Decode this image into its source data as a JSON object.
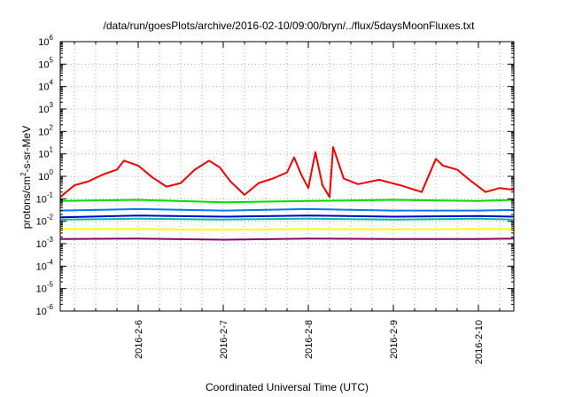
{
  "chart_data": {
    "type": "line",
    "title": "/data/run/goesPlots/archive/2016-02-10/09:00/bryn/../flux/5daysMoonFluxes.txt",
    "xlabel": "Coordinated Universal Time (UTC)",
    "ylabel": "protons/cm²-s-sr-MeV",
    "yscale": "log",
    "ylim": [
      1e-06,
      1000000.0
    ],
    "xlim": [
      "2016-02-05T02:00",
      "2016-02-10T10:00"
    ],
    "grid": true,
    "x_ticks": [
      "2016-2-6",
      "2016-2-7",
      "2016-2-8",
      "2016-2-9",
      "2016-2-10"
    ],
    "y_ticks": [
      {
        "base": "10",
        "exp": "-6"
      },
      {
        "base": "10",
        "exp": "-5"
      },
      {
        "base": "10",
        "exp": "-4"
      },
      {
        "base": "10",
        "exp": "-3"
      },
      {
        "base": "10",
        "exp": "-2"
      },
      {
        "base": "10",
        "exp": "-1"
      },
      {
        "base": "10",
        "exp": "0"
      },
      {
        "base": "10",
        "exp": "1"
      },
      {
        "base": "10",
        "exp": "2"
      },
      {
        "base": "10",
        "exp": "3"
      },
      {
        "base": "10",
        "exp": "4"
      },
      {
        "base": "10",
        "exp": "5"
      },
      {
        "base": "10",
        "exp": "6"
      }
    ],
    "series": [
      {
        "color": "#ee0000",
        "x": [
          "2016-02-05T02:00",
          "2016-02-05T06:00",
          "2016-02-05T10:00",
          "2016-02-05T14:00",
          "2016-02-05T18:00",
          "2016-02-05T20:00",
          "2016-02-06T00:00",
          "2016-02-06T04:00",
          "2016-02-06T08:00",
          "2016-02-06T12:00",
          "2016-02-06T16:00",
          "2016-02-06T20:00",
          "2016-02-06T23:00",
          "2016-02-07T02:00",
          "2016-02-07T06:00",
          "2016-02-07T10:00",
          "2016-02-07T14:00",
          "2016-02-07T18:00",
          "2016-02-07T20:00",
          "2016-02-07T22:00",
          "2016-02-08T00:00",
          "2016-02-08T02:00",
          "2016-02-08T04:00",
          "2016-02-08T06:00",
          "2016-02-08T07:00",
          "2016-02-08T10:00",
          "2016-02-08T14:00",
          "2016-02-08T20:00",
          "2016-02-09T02:00",
          "2016-02-09T08:00",
          "2016-02-09T12:00",
          "2016-02-09T14:00",
          "2016-02-09T18:00",
          "2016-02-09T22:00",
          "2016-02-10T02:00",
          "2016-02-10T06:00",
          "2016-02-10T10:00"
        ],
        "values": [
          0.12,
          0.4,
          0.6,
          1.2,
          2,
          5,
          3,
          0.9,
          0.35,
          0.5,
          2,
          5,
          2.5,
          0.6,
          0.15,
          0.5,
          0.8,
          1.5,
          7,
          1.2,
          0.3,
          12,
          0.4,
          0.12,
          20,
          0.8,
          0.45,
          0.7,
          0.4,
          0.2,
          6,
          3,
          2,
          0.6,
          0.2,
          0.3,
          0.25
        ]
      },
      {
        "color": "#00dd00",
        "x": [
          "2016-02-05T02:00",
          "2016-02-06T00:00",
          "2016-02-07T00:00",
          "2016-02-08T00:00",
          "2016-02-09T00:00",
          "2016-02-10T00:00",
          "2016-02-10T10:00"
        ],
        "values": [
          0.08,
          0.09,
          0.07,
          0.08,
          0.09,
          0.08,
          0.09
        ]
      },
      {
        "color": "#0077ff",
        "x": [
          "2016-02-05T02:00",
          "2016-02-06T00:00",
          "2016-02-07T00:00",
          "2016-02-08T00:00",
          "2016-02-09T00:00",
          "2016-02-10T00:00",
          "2016-02-10T10:00"
        ],
        "values": [
          0.03,
          0.035,
          0.03,
          0.035,
          0.03,
          0.03,
          0.032
        ]
      },
      {
        "color": "#00bbaa",
        "x": [
          "2016-02-05T02:00",
          "2016-02-06T00:00",
          "2016-02-07T00:00",
          "2016-02-08T00:00",
          "2016-02-09T00:00",
          "2016-02-10T00:00",
          "2016-02-10T10:00"
        ],
        "values": [
          0.012,
          0.013,
          0.012,
          0.013,
          0.012,
          0.013,
          0.012
        ]
      },
      {
        "color": "#0000cc",
        "x": [
          "2016-02-05T02:00",
          "2016-02-06T00:00",
          "2016-02-07T00:00",
          "2016-02-08T00:00",
          "2016-02-09T00:00",
          "2016-02-10T00:00",
          "2016-02-10T10:00"
        ],
        "values": [
          0.015,
          0.018,
          0.016,
          0.018,
          0.016,
          0.017,
          0.016
        ]
      },
      {
        "color": "#ffff00",
        "x": [
          "2016-02-05T02:00",
          "2016-02-06T00:00",
          "2016-02-07T00:00",
          "2016-02-08T00:00",
          "2016-02-09T00:00",
          "2016-02-10T00:00",
          "2016-02-10T10:00"
        ],
        "values": [
          0.0045,
          0.0045,
          0.0042,
          0.0045,
          0.0044,
          0.0045,
          0.0045
        ]
      },
      {
        "color": "#880066",
        "x": [
          "2016-02-05T02:00",
          "2016-02-06T00:00",
          "2016-02-07T00:00",
          "2016-02-08T00:00",
          "2016-02-09T00:00",
          "2016-02-10T00:00",
          "2016-02-10T10:00"
        ],
        "values": [
          0.0016,
          0.0017,
          0.0015,
          0.0017,
          0.0016,
          0.0016,
          0.0017
        ]
      }
    ]
  }
}
